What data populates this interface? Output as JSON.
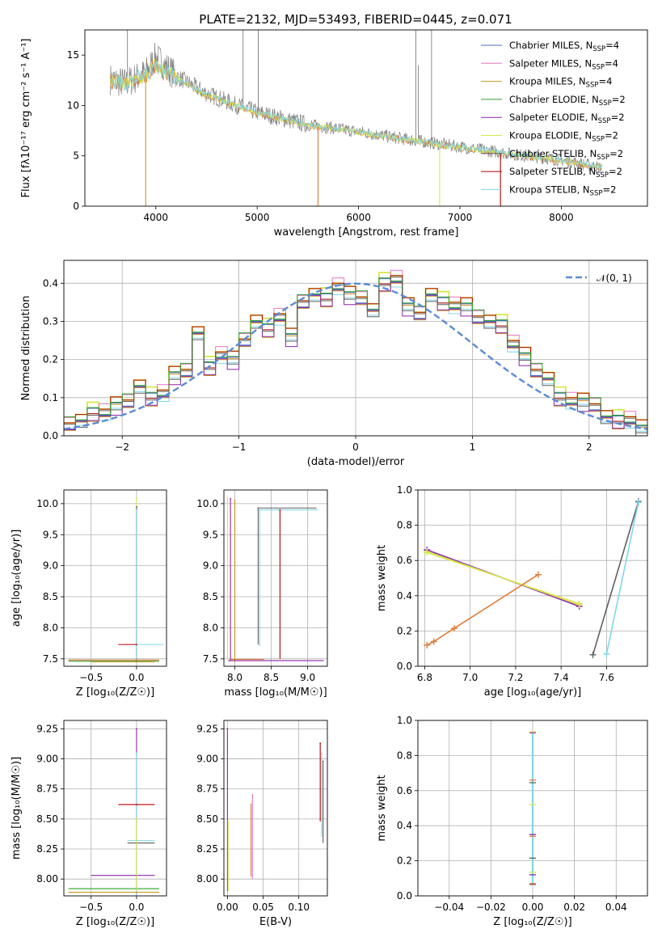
{
  "figure": {
    "title": "PLATE=2132, MJD=53493, FIBERID=0445, z=0.071"
  },
  "colors": {
    "Chabrier MILES": "#4a72c4",
    "Salpeter MILES": "#e377c2",
    "Kroupa MILES": "#c8961e",
    "Chabrier ELODIE": "#2ca02c",
    "Salpeter ELODIE": "#8e24aa",
    "Kroupa ELODIE": "#d6e84a",
    "Chabrier STELIB": "#606060",
    "Salpeter STELIB": "#b40000",
    "Kroupa STELIB": "#7fd6e8",
    "data": "#7f7f7f",
    "model_orange": "#e07b39",
    "gaussian": "#5b8bd6"
  },
  "chart_data": [
    {
      "id": "spectrum",
      "type": "line",
      "title": "PLATE=2132, MJD=53493, FIBERID=0445, z=0.071",
      "xlabel": "wavelength [Angstrom, rest frame]",
      "ylabel": "Flux [fλ10⁻¹⁷ erg cm⁻² s⁻¹ A⁻¹]",
      "xlim": [
        3300,
        8850
      ],
      "ylim": [
        0,
        17.5
      ],
      "xticks": [
        4000,
        5000,
        6000,
        7000,
        8000
      ],
      "yticks": [
        0,
        5,
        10,
        15
      ],
      "grid": false,
      "legend": {
        "position": "top-right",
        "entries": [
          {
            "name": "Chabrier MILES",
            "label": "Chabrier MILES, N",
            "sub": "SSP",
            "tail": "=4"
          },
          {
            "name": "Salpeter MILES",
            "label": "Salpeter MILES, N",
            "sub": "SSP",
            "tail": "=4"
          },
          {
            "name": "Kroupa MILES",
            "label": "Kroupa MILES, N",
            "sub": "SSP",
            "tail": "=4"
          },
          {
            "name": "Chabrier ELODIE",
            "label": "Chabrier ELODIE, N",
            "sub": "SSP",
            "tail": "=2"
          },
          {
            "name": "Salpeter ELODIE",
            "label": "Salpeter ELODIE, N",
            "sub": "SSP",
            "tail": "=2"
          },
          {
            "name": "Kroupa ELODIE",
            "label": "Kroupa ELODIE, N",
            "sub": "SSP",
            "tail": "=2"
          },
          {
            "name": "Chabrier STELIB",
            "label": "Chabrier STELIB, N",
            "sub": "SSP",
            "tail": "=2"
          },
          {
            "name": "Salpeter STELIB",
            "label": "Salpeter STELIB, N",
            "sub": "SSP",
            "tail": "=2"
          },
          {
            "name": "Kroupa STELIB",
            "label": "Kroupa STELIB, N",
            "sub": "SSP",
            "tail": "=2"
          }
        ]
      },
      "data_trend": {
        "x": [
          3550,
          3700,
          3900,
          4000,
          4200,
          4500,
          4800,
          5000,
          5500,
          6000,
          6500,
          7000,
          7500,
          8000,
          8400
        ],
        "y": [
          12.6,
          12.2,
          13.2,
          14.8,
          12.9,
          11.2,
          10.0,
          9.3,
          8.1,
          7.4,
          6.6,
          5.9,
          5.2,
          4.6,
          3.8
        ]
      },
      "model_trend": {
        "x": [
          3550,
          3700,
          3900,
          4000,
          4200,
          4500,
          4800,
          5000,
          5500,
          6000,
          6500,
          7000,
          7500,
          8000,
          8400
        ],
        "y": [
          12.4,
          12.0,
          13.0,
          14.0,
          12.6,
          11.0,
          9.9,
          9.2,
          8.0,
          7.3,
          6.5,
          5.8,
          5.1,
          4.5,
          3.8
        ]
      },
      "absorption_spikes": [
        {
          "x": 3900,
          "y": 0,
          "color_key": "Kroupa MILES"
        },
        {
          "x": 5600,
          "y": 0,
          "color_key": "model_orange"
        },
        {
          "x": 6800,
          "y": 0,
          "color_key": "Kroupa ELODIE"
        },
        {
          "x": 7400,
          "y": 0,
          "color_key": "Salpeter STELIB"
        }
      ],
      "emission_spikes": [
        {
          "x": 3720,
          "y": 17.5
        },
        {
          "x": 4860,
          "y": 17.5
        },
        {
          "x": 5010,
          "y": 17.5
        },
        {
          "x": 6565,
          "y": 17.5
        },
        {
          "x": 6720,
          "y": 17.5
        },
        {
          "x": 6590,
          "y": 14.0
        }
      ]
    },
    {
      "id": "residuals",
      "type": "line",
      "xlabel": "(data-model)/error",
      "ylabel": "Normed distribution",
      "xlim": [
        -2.5,
        2.5
      ],
      "ylim": [
        0,
        0.46
      ],
      "xticks": [
        -2,
        -1,
        0,
        1,
        2
      ],
      "yticks": [
        0.0,
        0.1,
        0.2,
        0.3,
        0.4
      ],
      "grid": true,
      "legend": {
        "position": "top-right",
        "entries": [
          {
            "name": "gaussian",
            "label": "𝒩(0, 1)"
          }
        ]
      },
      "histogram": {
        "bin_edges_start": -2.5,
        "bin_width": 0.1,
        "values": [
          0.03,
          0.04,
          0.06,
          0.06,
          0.08,
          0.09,
          0.13,
          0.1,
          0.11,
          0.16,
          0.17,
          0.27,
          0.18,
          0.21,
          0.2,
          0.25,
          0.3,
          0.28,
          0.31,
          0.26,
          0.35,
          0.37,
          0.36,
          0.39,
          0.37,
          0.36,
          0.33,
          0.4,
          0.41,
          0.34,
          0.32,
          0.37,
          0.35,
          0.34,
          0.34,
          0.31,
          0.3,
          0.29,
          0.24,
          0.21,
          0.17,
          0.15,
          0.1,
          0.09,
          0.09,
          0.08,
          0.05,
          0.04,
          0.04,
          0.02
        ],
        "variant_offsets": [
          0,
          0.012,
          -0.01,
          0.008,
          -0.014,
          0.016,
          -0.006,
          0.01,
          -0.008
        ]
      },
      "gaussian": {
        "mean": 0,
        "sigma": 1
      }
    },
    {
      "id": "age_vs_Z",
      "type": "scatter",
      "xlabel": "Z [log₁₀(Z/Z☉)]",
      "ylabel": "age  [log₁₀(age/yr)]",
      "xlim": [
        -0.8,
        0.33
      ],
      "ylim": [
        7.38,
        10.22
      ],
      "xticks": [
        -0.5,
        0.0
      ],
      "yticks": [
        7.5,
        8.0,
        8.5,
        9.0,
        9.5,
        10.0
      ],
      "grid": true,
      "points": [
        {
          "x": 0.0,
          "y": 10.08,
          "xerr": [
            0.0,
            0.0
          ],
          "yerr": [
            2.6,
            0.0
          ],
          "color_key": "Kroupa ELODIE"
        },
        {
          "x": 0.0,
          "y": 9.95,
          "xerr": [
            0.0,
            0.0
          ],
          "yerr": [
            2.5,
            0.0
          ],
          "color_key": "Chabrier STELIB"
        },
        {
          "x": 0.0,
          "y": 9.9,
          "xerr": [
            0.0,
            0.0
          ],
          "yerr": [
            2.4,
            0.0
          ],
          "color_key": "Kroupa STELIB"
        },
        {
          "x": 0.0,
          "y": 7.73,
          "xerr": [
            0.0,
            0.3
          ],
          "yerr": [
            0,
            0
          ],
          "color_key": "Kroupa STELIB"
        },
        {
          "x": 0.0,
          "y": 7.73,
          "xerr": [
            0.2,
            0.0
          ],
          "yerr": [
            0,
            0
          ],
          "color_key": "Salpeter STELIB"
        },
        {
          "x": 0.0,
          "y": 7.48,
          "xerr": [
            0.75,
            0.25
          ],
          "yerr": [
            0,
            0
          ],
          "color_key": "model_orange"
        },
        {
          "x": 0.0,
          "y": 7.46,
          "xerr": [
            0.75,
            0.25
          ],
          "yerr": [
            0,
            0
          ],
          "color_key": "Chabrier ELODIE"
        },
        {
          "x": 0.0,
          "y": 7.45,
          "xerr": [
            0.5,
            0.2
          ],
          "yerr": [
            0,
            0
          ],
          "color_key": "Kroupa MILES"
        }
      ]
    },
    {
      "id": "age_vs_mass",
      "type": "scatter",
      "xlabel": "mass [log₁₀(M/M☉)]",
      "ylabel": "",
      "xlim": [
        7.85,
        9.27
      ],
      "ylim": [
        7.38,
        10.22
      ],
      "xticks": [
        8.0,
        8.5,
        9.0
      ],
      "yticks": [
        7.5,
        8.0,
        8.5,
        9.0,
        9.5,
        10.0
      ],
      "grid": true,
      "points": [
        {
          "x": 7.9,
          "y": 10.1,
          "xerr": [
            0,
            0
          ],
          "yerr": [
            2.6,
            0
          ],
          "color_key": "Kroupa ELODIE"
        },
        {
          "x": 7.94,
          "y": 10.08,
          "xerr": [
            0,
            0
          ],
          "yerr": [
            2.6,
            0
          ],
          "color_key": "Salpeter ELODIE"
        },
        {
          "x": 8.0,
          "y": 10.05,
          "xerr": [
            0,
            0
          ],
          "yerr": [
            2.6,
            0
          ],
          "color_key": "Kroupa MILES"
        },
        {
          "x": 8.32,
          "y": 9.93,
          "xerr": [
            0,
            0.8
          ],
          "yerr": [
            2.2,
            0
          ],
          "color_key": "Chabrier STELIB"
        },
        {
          "x": 8.34,
          "y": 9.9,
          "xerr": [
            0,
            0.8
          ],
          "yerr": [
            2.2,
            0
          ],
          "color_key": "Kroupa STELIB"
        },
        {
          "x": 8.62,
          "y": 9.9,
          "xerr": [
            0,
            0
          ],
          "yerr": [
            2.4,
            0
          ],
          "color_key": "Salpeter STELIB"
        },
        {
          "x": 7.92,
          "y": 7.47,
          "xerr": [
            0,
            1.3
          ],
          "yerr": [
            0,
            0
          ],
          "color_key": "Salpeter ELODIE"
        },
        {
          "x": 7.95,
          "y": 7.49,
          "xerr": [
            0,
            0.45
          ],
          "yerr": [
            0,
            0
          ],
          "color_key": "model_orange"
        }
      ]
    },
    {
      "id": "weight_vs_age",
      "type": "line",
      "xlabel": "age  [log₁₀(age/yr)]",
      "ylabel": "mass weight",
      "xlim": [
        6.77,
        7.78
      ],
      "ylim": [
        0,
        1.0
      ],
      "xticks": [
        6.8,
        7.0,
        7.2,
        7.4,
        7.6
      ],
      "yticks": [
        0.0,
        0.2,
        0.4,
        0.6,
        0.8,
        1.0
      ],
      "grid": true,
      "series": [
        {
          "color_key": "Salpeter ELODIE",
          "x": [
            6.81,
            7.48
          ],
          "y": [
            0.66,
            0.34
          ]
        },
        {
          "color_key": "Kroupa ELODIE",
          "x": [
            6.81,
            7.48
          ],
          "y": [
            0.645,
            0.355
          ]
        },
        {
          "color_key": "Kroupa ELODIE",
          "x": [
            6.81,
            7.48
          ],
          "y": [
            0.65,
            0.35
          ]
        },
        {
          "color_key": "model_orange",
          "x": [
            6.81,
            6.84,
            6.93,
            7.3
          ],
          "y": [
            0.12,
            0.14,
            0.215,
            0.52
          ]
        },
        {
          "color_key": "Chabrier STELIB",
          "x": [
            7.54,
            7.74
          ],
          "y": [
            0.065,
            0.935
          ]
        },
        {
          "color_key": "Kroupa STELIB",
          "x": [
            7.6,
            7.74
          ],
          "y": [
            0.07,
            0.93
          ]
        }
      ]
    },
    {
      "id": "mass_vs_Z",
      "type": "scatter",
      "xlabel": "Z [log₁₀(Z/Z☉)]",
      "ylabel": "mass [log₁₀(M/M☉)]",
      "xlim": [
        -0.8,
        0.33
      ],
      "ylim": [
        7.86,
        9.32
      ],
      "xticks": [
        -0.5,
        0.0
      ],
      "yticks": [
        8.0,
        8.25,
        8.5,
        8.75,
        9.0,
        9.25
      ],
      "grid": true,
      "points": [
        {
          "x": 0.0,
          "y": 9.25,
          "xerr": [
            0,
            0
          ],
          "yerr": [
            1.4,
            0
          ],
          "color_key": "Salpeter ELODIE"
        },
        {
          "x": 0.0,
          "y": 9.05,
          "xerr": [
            0,
            0
          ],
          "yerr": [
            1.2,
            0
          ],
          "color_key": "Kroupa STELIB"
        },
        {
          "x": 0.0,
          "y": 8.62,
          "xerr": [
            0.2,
            0.2
          ],
          "yerr": [
            0,
            0
          ],
          "color_key": "Salpeter STELIB"
        },
        {
          "x": 0.0,
          "y": 8.32,
          "xerr": [
            0.1,
            0.2
          ],
          "yerr": [
            0,
            0
          ],
          "color_key": "Kroupa STELIB"
        },
        {
          "x": 0.0,
          "y": 8.3,
          "xerr": [
            0.1,
            0.2
          ],
          "yerr": [
            0,
            0
          ],
          "color_key": "Chabrier STELIB"
        },
        {
          "x": 0.0,
          "y": 8.03,
          "xerr": [
            0.5,
            0.2
          ],
          "yerr": [
            0,
            0
          ],
          "color_key": "Salpeter ELODIE"
        },
        {
          "x": 0.0,
          "y": 7.92,
          "xerr": [
            0.75,
            0.25
          ],
          "yerr": [
            0,
            0
          ],
          "color_key": "Chabrier ELODIE"
        },
        {
          "x": 0.0,
          "y": 7.89,
          "xerr": [
            0.75,
            0.25
          ],
          "yerr": [
            0,
            0
          ],
          "color_key": "Kroupa MILES"
        },
        {
          "x": 0.0,
          "y": 8.5,
          "xerr": [
            0,
            0
          ],
          "yerr": [
            0.6,
            0
          ],
          "color_key": "Kroupa ELODIE"
        }
      ]
    },
    {
      "id": "mass_vs_EBV",
      "type": "scatter",
      "xlabel": "E(B-V)",
      "ylabel": "",
      "xlim": [
        -0.005,
        0.14
      ],
      "ylim": [
        7.86,
        9.32
      ],
      "xticks": [
        0.0,
        0.05,
        0.1
      ],
      "yticks": [
        8.0,
        8.25,
        8.5,
        8.75,
        9.0,
        9.25
      ],
      "grid": true,
      "points": [
        {
          "x": 0.0,
          "y": 9.25,
          "xerr": [
            0,
            0
          ],
          "yerr": [
            1.35,
            0
          ],
          "color_key": "Salpeter ELODIE"
        },
        {
          "x": 0.001,
          "y": 8.48,
          "xerr": [
            0,
            0
          ],
          "yerr": [
            0.58,
            0
          ],
          "color_key": "Kroupa ELODIE"
        },
        {
          "x": 0.033,
          "y": 8.62,
          "xerr": [
            0,
            0
          ],
          "yerr": [
            0.6,
            0
          ],
          "color_key": "model_orange"
        },
        {
          "x": 0.035,
          "y": 8.7,
          "xerr": [
            0,
            0
          ],
          "yerr": [
            0.7,
            0
          ],
          "color_key": "Salpeter MILES"
        },
        {
          "x": 0.13,
          "y": 9.13,
          "xerr": [
            0,
            0
          ],
          "yerr": [
            0.65,
            0
          ],
          "color_key": "Salpeter STELIB"
        },
        {
          "x": 0.132,
          "y": 9.05,
          "xerr": [
            0,
            0
          ],
          "yerr": [
            0.7,
            0
          ],
          "color_key": "Kroupa STELIB"
        },
        {
          "x": 0.134,
          "y": 8.98,
          "xerr": [
            0,
            0
          ],
          "yerr": [
            0.68,
            0
          ],
          "color_key": "Chabrier STELIB"
        }
      ]
    },
    {
      "id": "weight_vs_Z",
      "type": "scatter",
      "xlabel": "Z [log₁₀(Z/Z☉)]",
      "ylabel": "mass weight",
      "xlim": [
        -0.055,
        0.055
      ],
      "ylim": [
        0,
        1.0
      ],
      "xticks": [
        -0.04,
        -0.02,
        0.0,
        0.02,
        0.04
      ],
      "yticks": [
        0.0,
        0.2,
        0.4,
        0.6,
        0.8,
        1.0
      ],
      "grid": true,
      "points_y": [
        0.065,
        0.07,
        0.12,
        0.135,
        0.215,
        0.34,
        0.35,
        0.52,
        0.645,
        0.66,
        0.93,
        0.935
      ],
      "vertical_line": {
        "x": 0.0,
        "y": [
          0.065,
          0.935
        ],
        "color_key": "Kroupa STELIB"
      }
    }
  ]
}
